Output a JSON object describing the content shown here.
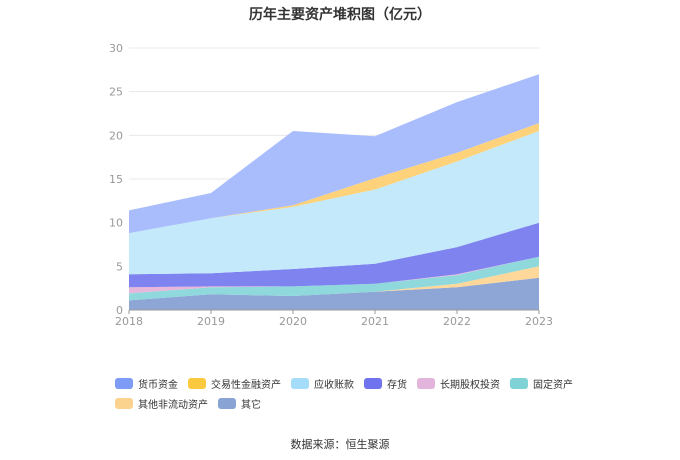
{
  "chart_data": {
    "type": "area",
    "stacked": true,
    "title": "历年主要资产堆积图（亿元）",
    "source": "数据来源：恒生聚源",
    "categories": [
      "2018",
      "2019",
      "2020",
      "2021",
      "2022",
      "2023"
    ],
    "ylim": [
      0,
      30
    ],
    "yticks": [
      0,
      5,
      10,
      15,
      20,
      25,
      30
    ],
    "grid": true,
    "legend_position": "bottom",
    "series": [
      {
        "name": "其它",
        "color": "#8ea6d6",
        "values": [
          1.1,
          1.8,
          1.6,
          2.1,
          2.6,
          3.7
        ]
      },
      {
        "name": "其他非流动资产",
        "color": "#fdd89a",
        "values": [
          0.0,
          0.0,
          0.0,
          0.0,
          0.4,
          1.3
        ]
      },
      {
        "name": "固定资产",
        "color": "#8fd8dc",
        "values": [
          0.8,
          0.8,
          1.1,
          0.9,
          1.0,
          1.1
        ]
      },
      {
        "name": "长期股权投资",
        "color": "#e7b6db",
        "values": [
          0.7,
          0.1,
          0.0,
          0.0,
          0.1,
          0.0
        ]
      },
      {
        "name": "存货",
        "color": "#7f83f0",
        "values": [
          1.5,
          1.5,
          2.0,
          2.3,
          3.1,
          3.9
        ]
      },
      {
        "name": "应收账款",
        "color": "#c3e9fb",
        "values": [
          4.7,
          6.3,
          7.1,
          8.5,
          9.8,
          10.5
        ]
      },
      {
        "name": "交易性金融资产",
        "color": "#fdd27a",
        "values": [
          0.0,
          0.0,
          0.2,
          1.3,
          1.0,
          0.9
        ]
      },
      {
        "name": "货币资金",
        "color": "#a9bdfd",
        "values": [
          2.6,
          2.9,
          8.5,
          4.8,
          5.8,
          5.6
        ]
      }
    ]
  },
  "legend_order": [
    {
      "name": "货币资金",
      "color": "#7e9cf7"
    },
    {
      "name": "交易性金融资产",
      "color": "#fbc93f"
    },
    {
      "name": "应收账款",
      "color": "#a4ddf9"
    },
    {
      "name": "存货",
      "color": "#6f73ee"
    },
    {
      "name": "长期股权投资",
      "color": "#e3b5dc"
    },
    {
      "name": "固定资产",
      "color": "#7fd3d7"
    },
    {
      "name": "其他非流动资产",
      "color": "#fcd38e"
    },
    {
      "name": "其它",
      "color": "#88a3d4"
    }
  ]
}
